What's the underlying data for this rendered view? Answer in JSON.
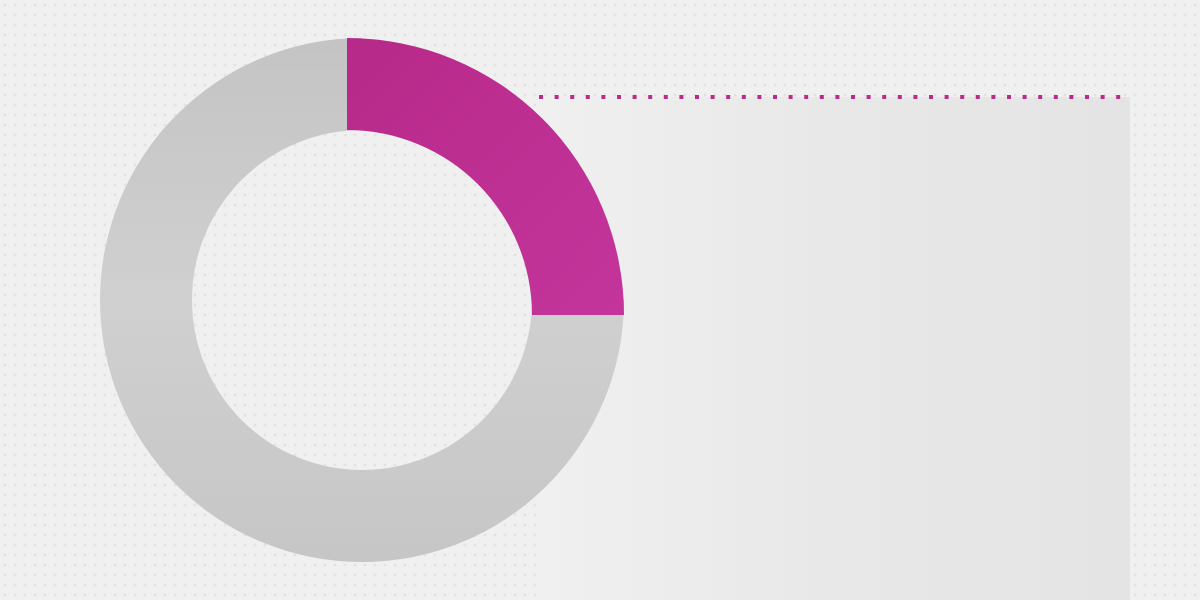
{
  "chart_data": {
    "type": "pie",
    "variant": "donut",
    "values": [
      25,
      75
    ],
    "highlighted_index": 0,
    "colors": [
      "#bd2f92",
      "#c8c8c8"
    ],
    "highlight_exploded": true,
    "title": "",
    "legend": "none"
  },
  "colors": {
    "accent": "#bd2f92",
    "background": "#f0f0f0",
    "panel": "#e6e6e6",
    "leader_line": "#b82d8a"
  }
}
